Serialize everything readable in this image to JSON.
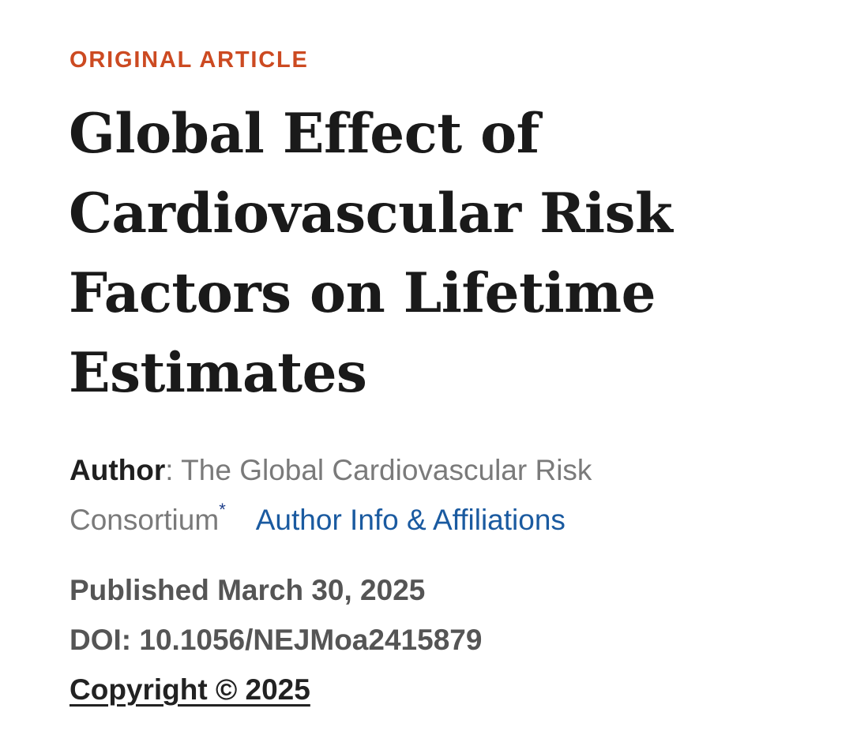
{
  "article": {
    "kicker": "ORIGINAL ARTICLE",
    "title": "Global Effect of Cardiovascular Risk Factors on Lifetime Estimates",
    "author_label": "Author",
    "author_sep": ": ",
    "author_name": "The Global Cardiovascular Risk Consortium",
    "author_mark": "*",
    "affiliations_link": "Author Info & Affiliations",
    "published": "Published March 30, 2025",
    "doi": "DOI: 10.1056/NEJMoa2415879",
    "copyright": "Copyright © 2025"
  },
  "colors": {
    "kicker": "#cc4a21",
    "link": "#1a5aa0"
  }
}
